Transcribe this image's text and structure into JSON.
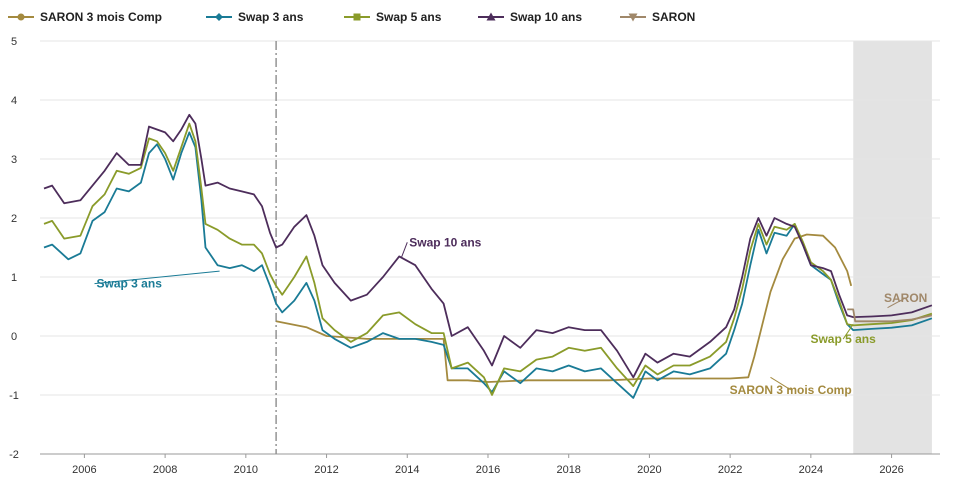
{
  "chart_data": {
    "type": "line",
    "title": "",
    "xlabel": "",
    "ylabel": "",
    "xlim": [
      2004.9,
      2027.2
    ],
    "ylim": [
      -2,
      5
    ],
    "grid": true,
    "legend_position": "top",
    "x_ticks": [
      2006,
      2008,
      2010,
      2012,
      2014,
      2016,
      2018,
      2020,
      2022,
      2024,
      2026
    ],
    "x_tick_labels": [
      "2006",
      "2008",
      "2010",
      "2012",
      "2014",
      "2016",
      "2018",
      "2020",
      "2022",
      "2024",
      "2026"
    ],
    "y_ticks": [
      -2,
      -1,
      0,
      1,
      2,
      3,
      4,
      5
    ],
    "y_tick_labels": [
      "-2",
      "-1",
      "0",
      "1",
      "2",
      "3",
      "4",
      "5"
    ],
    "vline_x": 2010.75,
    "forecast_shade": [
      2025.05,
      2027.0
    ],
    "series": [
      {
        "name": "SARON 3 mois Comp",
        "color": "#a48a3f",
        "marker": "circle",
        "points": [
          [
            2010.75,
            0.25
          ],
          [
            2011.5,
            0.15
          ],
          [
            2012,
            0.0
          ],
          [
            2013,
            -0.05
          ],
          [
            2014,
            -0.05
          ],
          [
            2014.9,
            -0.05
          ],
          [
            2015.0,
            -0.75
          ],
          [
            2015.5,
            -0.75
          ],
          [
            2016,
            -0.78
          ],
          [
            2017,
            -0.75
          ],
          [
            2018,
            -0.75
          ],
          [
            2019,
            -0.75
          ],
          [
            2020,
            -0.72
          ],
          [
            2021,
            -0.72
          ],
          [
            2022,
            -0.72
          ],
          [
            2022.45,
            -0.7
          ],
          [
            2022.6,
            -0.35
          ],
          [
            2022.8,
            0.2
          ],
          [
            2023.0,
            0.75
          ],
          [
            2023.3,
            1.3
          ],
          [
            2023.6,
            1.65
          ],
          [
            2023.9,
            1.72
          ],
          [
            2024.3,
            1.7
          ],
          [
            2024.6,
            1.5
          ],
          [
            2024.9,
            1.1
          ],
          [
            2025.0,
            0.85
          ]
        ]
      },
      {
        "name": "Swap 3 ans",
        "color": "#1a7b96",
        "marker": "diamond",
        "points": [
          [
            2005,
            1.5
          ],
          [
            2005.2,
            1.55
          ],
          [
            2005.6,
            1.3
          ],
          [
            2005.9,
            1.4
          ],
          [
            2006.2,
            1.95
          ],
          [
            2006.5,
            2.1
          ],
          [
            2006.8,
            2.5
          ],
          [
            2007.1,
            2.45
          ],
          [
            2007.4,
            2.6
          ],
          [
            2007.6,
            3.1
          ],
          [
            2007.8,
            3.25
          ],
          [
            2008.0,
            3.0
          ],
          [
            2008.2,
            2.65
          ],
          [
            2008.4,
            3.1
          ],
          [
            2008.6,
            3.45
          ],
          [
            2008.75,
            3.2
          ],
          [
            2008.9,
            2.3
          ],
          [
            2009.0,
            1.5
          ],
          [
            2009.3,
            1.2
          ],
          [
            2009.6,
            1.15
          ],
          [
            2009.9,
            1.2
          ],
          [
            2010.2,
            1.1
          ],
          [
            2010.4,
            1.2
          ],
          [
            2010.6,
            0.85
          ],
          [
            2010.75,
            0.55
          ],
          [
            2010.9,
            0.4
          ],
          [
            2011.2,
            0.6
          ],
          [
            2011.5,
            0.9
          ],
          [
            2011.7,
            0.6
          ],
          [
            2011.9,
            0.1
          ],
          [
            2012.2,
            -0.05
          ],
          [
            2012.6,
            -0.2
          ],
          [
            2013.0,
            -0.1
          ],
          [
            2013.4,
            0.05
          ],
          [
            2013.8,
            -0.05
          ],
          [
            2014.2,
            -0.05
          ],
          [
            2014.6,
            -0.1
          ],
          [
            2014.9,
            -0.15
          ],
          [
            2015.1,
            -0.55
          ],
          [
            2015.5,
            -0.55
          ],
          [
            2015.9,
            -0.8
          ],
          [
            2016.1,
            -0.95
          ],
          [
            2016.4,
            -0.6
          ],
          [
            2016.8,
            -0.8
          ],
          [
            2017.2,
            -0.55
          ],
          [
            2017.6,
            -0.6
          ],
          [
            2018.0,
            -0.5
          ],
          [
            2018.4,
            -0.6
          ],
          [
            2018.8,
            -0.55
          ],
          [
            2019.2,
            -0.8
          ],
          [
            2019.6,
            -1.05
          ],
          [
            2019.9,
            -0.6
          ],
          [
            2020.2,
            -0.75
          ],
          [
            2020.6,
            -0.6
          ],
          [
            2021.0,
            -0.65
          ],
          [
            2021.5,
            -0.55
          ],
          [
            2021.9,
            -0.3
          ],
          [
            2022.1,
            0.1
          ],
          [
            2022.3,
            0.55
          ],
          [
            2022.5,
            1.2
          ],
          [
            2022.7,
            1.8
          ],
          [
            2022.9,
            1.4
          ],
          [
            2023.1,
            1.75
          ],
          [
            2023.4,
            1.7
          ],
          [
            2023.6,
            1.9
          ],
          [
            2023.8,
            1.55
          ],
          [
            2024.0,
            1.2
          ],
          [
            2024.3,
            1.05
          ],
          [
            2024.5,
            0.95
          ],
          [
            2024.7,
            0.55
          ],
          [
            2024.9,
            0.2
          ],
          [
            2025.05,
            0.1
          ],
          [
            2025.5,
            0.12
          ],
          [
            2026.0,
            0.14
          ],
          [
            2026.5,
            0.18
          ],
          [
            2027.0,
            0.3
          ]
        ]
      },
      {
        "name": "Swap 5 ans",
        "color": "#8a9b2a",
        "marker": "square",
        "points": [
          [
            2005,
            1.9
          ],
          [
            2005.2,
            1.95
          ],
          [
            2005.5,
            1.65
          ],
          [
            2005.9,
            1.7
          ],
          [
            2006.2,
            2.2
          ],
          [
            2006.5,
            2.4
          ],
          [
            2006.8,
            2.8
          ],
          [
            2007.1,
            2.75
          ],
          [
            2007.4,
            2.85
          ],
          [
            2007.6,
            3.35
          ],
          [
            2007.8,
            3.3
          ],
          [
            2008.0,
            3.1
          ],
          [
            2008.2,
            2.8
          ],
          [
            2008.4,
            3.2
          ],
          [
            2008.6,
            3.6
          ],
          [
            2008.75,
            3.3
          ],
          [
            2008.9,
            2.5
          ],
          [
            2009.0,
            1.9
          ],
          [
            2009.3,
            1.8
          ],
          [
            2009.6,
            1.65
          ],
          [
            2009.9,
            1.55
          ],
          [
            2010.2,
            1.55
          ],
          [
            2010.4,
            1.4
          ],
          [
            2010.6,
            1.05
          ],
          [
            2010.75,
            0.85
          ],
          [
            2010.9,
            0.7
          ],
          [
            2011.2,
            1.0
          ],
          [
            2011.5,
            1.35
          ],
          [
            2011.7,
            0.9
          ],
          [
            2011.9,
            0.3
          ],
          [
            2012.2,
            0.1
          ],
          [
            2012.6,
            -0.1
          ],
          [
            2013.0,
            0.05
          ],
          [
            2013.4,
            0.35
          ],
          [
            2013.8,
            0.4
          ],
          [
            2014.2,
            0.2
          ],
          [
            2014.6,
            0.05
          ],
          [
            2014.9,
            0.05
          ],
          [
            2015.1,
            -0.55
          ],
          [
            2015.5,
            -0.45
          ],
          [
            2015.9,
            -0.7
          ],
          [
            2016.1,
            -1.0
          ],
          [
            2016.4,
            -0.55
          ],
          [
            2016.8,
            -0.6
          ],
          [
            2017.2,
            -0.4
          ],
          [
            2017.6,
            -0.35
          ],
          [
            2018.0,
            -0.2
          ],
          [
            2018.4,
            -0.25
          ],
          [
            2018.8,
            -0.2
          ],
          [
            2019.2,
            -0.55
          ],
          [
            2019.6,
            -0.85
          ],
          [
            2019.9,
            -0.5
          ],
          [
            2020.2,
            -0.65
          ],
          [
            2020.6,
            -0.5
          ],
          [
            2021.0,
            -0.5
          ],
          [
            2021.5,
            -0.35
          ],
          [
            2021.9,
            -0.1
          ],
          [
            2022.1,
            0.3
          ],
          [
            2022.3,
            0.8
          ],
          [
            2022.5,
            1.45
          ],
          [
            2022.7,
            1.9
          ],
          [
            2022.9,
            1.55
          ],
          [
            2023.1,
            1.85
          ],
          [
            2023.4,
            1.8
          ],
          [
            2023.6,
            1.9
          ],
          [
            2023.8,
            1.6
          ],
          [
            2024.0,
            1.25
          ],
          [
            2024.3,
            1.1
          ],
          [
            2024.5,
            0.95
          ],
          [
            2024.7,
            0.6
          ],
          [
            2024.9,
            0.2
          ],
          [
            2025.05,
            0.18
          ],
          [
            2025.5,
            0.2
          ],
          [
            2026.0,
            0.22
          ],
          [
            2026.5,
            0.27
          ],
          [
            2027.0,
            0.38
          ]
        ]
      },
      {
        "name": "Swap 10 ans",
        "color": "#4d2d5b",
        "marker": "triangle",
        "points": [
          [
            2005,
            2.5
          ],
          [
            2005.2,
            2.55
          ],
          [
            2005.5,
            2.25
          ],
          [
            2005.9,
            2.3
          ],
          [
            2006.2,
            2.55
          ],
          [
            2006.5,
            2.8
          ],
          [
            2006.8,
            3.1
          ],
          [
            2007.1,
            2.9
          ],
          [
            2007.4,
            2.9
          ],
          [
            2007.6,
            3.55
          ],
          [
            2007.8,
            3.5
          ],
          [
            2008.0,
            3.45
          ],
          [
            2008.2,
            3.3
          ],
          [
            2008.4,
            3.5
          ],
          [
            2008.6,
            3.75
          ],
          [
            2008.75,
            3.6
          ],
          [
            2008.9,
            3.0
          ],
          [
            2009.0,
            2.55
          ],
          [
            2009.3,
            2.6
          ],
          [
            2009.6,
            2.5
          ],
          [
            2009.9,
            2.45
          ],
          [
            2010.2,
            2.4
          ],
          [
            2010.4,
            2.2
          ],
          [
            2010.6,
            1.75
          ],
          [
            2010.75,
            1.5
          ],
          [
            2010.9,
            1.55
          ],
          [
            2011.2,
            1.85
          ],
          [
            2011.5,
            2.05
          ],
          [
            2011.7,
            1.7
          ],
          [
            2011.9,
            1.2
          ],
          [
            2012.2,
            0.9
          ],
          [
            2012.6,
            0.6
          ],
          [
            2013.0,
            0.7
          ],
          [
            2013.4,
            1.0
          ],
          [
            2013.8,
            1.35
          ],
          [
            2014.2,
            1.2
          ],
          [
            2014.6,
            0.8
          ],
          [
            2014.9,
            0.55
          ],
          [
            2015.1,
            0.0
          ],
          [
            2015.5,
            0.15
          ],
          [
            2015.9,
            -0.25
          ],
          [
            2016.1,
            -0.5
          ],
          [
            2016.4,
            0.0
          ],
          [
            2016.8,
            -0.2
          ],
          [
            2017.2,
            0.1
          ],
          [
            2017.6,
            0.05
          ],
          [
            2018.0,
            0.15
          ],
          [
            2018.4,
            0.1
          ],
          [
            2018.8,
            0.1
          ],
          [
            2019.2,
            -0.25
          ],
          [
            2019.6,
            -0.7
          ],
          [
            2019.9,
            -0.3
          ],
          [
            2020.2,
            -0.45
          ],
          [
            2020.6,
            -0.3
          ],
          [
            2021.0,
            -0.35
          ],
          [
            2021.5,
            -0.1
          ],
          [
            2021.9,
            0.15
          ],
          [
            2022.1,
            0.45
          ],
          [
            2022.3,
            1.0
          ],
          [
            2022.5,
            1.65
          ],
          [
            2022.7,
            2.0
          ],
          [
            2022.9,
            1.7
          ],
          [
            2023.1,
            2.0
          ],
          [
            2023.4,
            1.9
          ],
          [
            2023.6,
            1.85
          ],
          [
            2023.8,
            1.55
          ],
          [
            2024.0,
            1.2
          ],
          [
            2024.3,
            1.15
          ],
          [
            2024.5,
            1.1
          ],
          [
            2024.7,
            0.7
          ],
          [
            2024.9,
            0.35
          ],
          [
            2025.05,
            0.32
          ],
          [
            2025.5,
            0.33
          ],
          [
            2026.0,
            0.35
          ],
          [
            2026.5,
            0.4
          ],
          [
            2027.0,
            0.52
          ]
        ]
      },
      {
        "name": "SARON",
        "color": "#a0886a",
        "marker": "triangle-down",
        "points": [
          [
            2024.9,
            0.45
          ],
          [
            2025.05,
            0.45
          ],
          [
            2025.1,
            0.25
          ],
          [
            2025.5,
            0.25
          ],
          [
            2026.0,
            0.25
          ],
          [
            2026.5,
            0.28
          ],
          [
            2027.0,
            0.35
          ]
        ]
      }
    ],
    "annotations": [
      {
        "text": "Swap 10 ans",
        "x": 2014.05,
        "y": 1.52,
        "series": "Swap 10 ans",
        "color": "#4d2d5b",
        "anchor": "start",
        "leader_to": [
          2013.85,
          1.32
        ]
      },
      {
        "text": "Swap 3 ans",
        "x": 2006.3,
        "y": 0.82,
        "series": "Swap 3 ans",
        "color": "#1a7b96",
        "anchor": "start",
        "leader_to": [
          2009.35,
          1.1
        ]
      },
      {
        "text": "SARON",
        "x": 2026.35,
        "y": 0.58,
        "series": "SARON",
        "color": "#a0886a",
        "anchor": "middle",
        "leader_to": [
          2025.9,
          0.48
        ]
      },
      {
        "text": "Swap 5 ans",
        "x": 2024.8,
        "y": -0.12,
        "series": "Swap 5 ans",
        "color": "#8a9b2a",
        "anchor": "middle",
        "leader_to": [
          2025.05,
          0.2
        ]
      },
      {
        "text": "SARON 3 mois Comp",
        "x": 2023.5,
        "y": -0.98,
        "series": "SARON 3 mois Comp",
        "color": "#a48a3f",
        "anchor": "middle",
        "leader_to": [
          2023.0,
          -0.7
        ]
      }
    ]
  }
}
